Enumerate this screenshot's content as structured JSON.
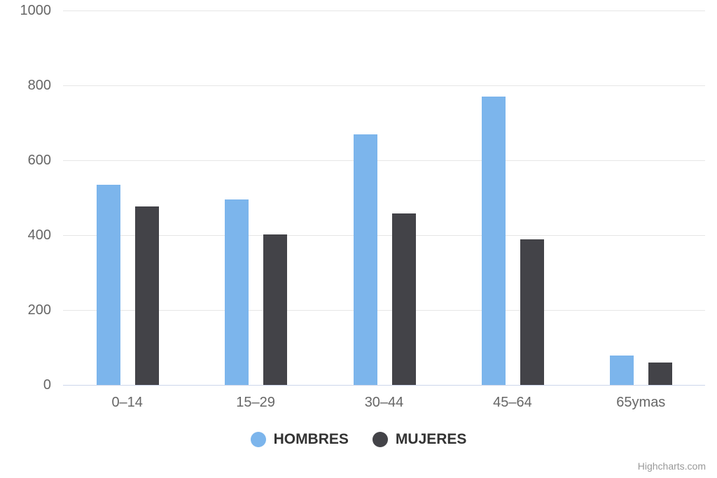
{
  "chart_data": {
    "type": "bar",
    "title": "",
    "xlabel": "",
    "ylabel": "",
    "categories": [
      "0–14",
      "15–29",
      "30–44",
      "45–64",
      "65ymas"
    ],
    "series": [
      {
        "name": "HOMBRES",
        "color": "#7cb5ec",
        "values": [
          535,
          495,
          670,
          770,
          78
        ]
      },
      {
        "name": "MUJERES",
        "color": "#434348",
        "values": [
          477,
          402,
          458,
          388,
          60
        ]
      }
    ],
    "ylim": [
      0,
      1000
    ],
    "yticks": [
      0,
      200,
      400,
      600,
      800,
      1000
    ],
    "grid": true,
    "gridline_color": "#e6e6e6",
    "axis_line_color": "#ccd6eb",
    "label_color": "#666666",
    "legend_position": "bottom",
    "legend_text_color": "#333333"
  },
  "credits": {
    "label": "Highcharts.com"
  }
}
